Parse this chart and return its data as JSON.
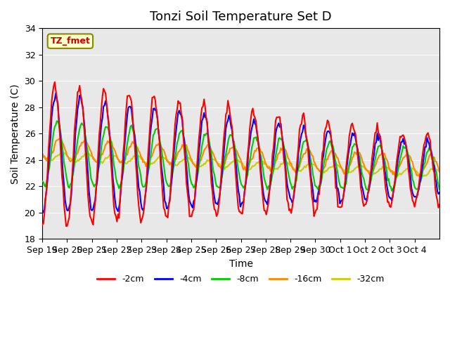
{
  "title": "Tonzi Soil Temperature Set D",
  "ylabel": "Soil Temperature (C)",
  "xlabel": "Time",
  "annotation": "TZ_fmet",
  "ylim": [
    18,
    34
  ],
  "yticks": [
    18,
    20,
    22,
    24,
    26,
    28,
    30,
    32,
    34
  ],
  "xtick_labels": [
    "Sep 19",
    "Sep 20",
    "Sep 21",
    "Sep 22",
    "Sep 23",
    "Sep 24",
    "Sep 25",
    "Sep 26",
    "Sep 27",
    "Sep 28",
    "Sep 29",
    "Sep 30",
    "Oct 1",
    "Oct 2",
    "Oct 3",
    "Oct 4"
  ],
  "legend_labels": [
    "-2cm",
    "-4cm",
    "-8cm",
    "-16cm",
    "-32cm"
  ],
  "line_colors": [
    "#ff0000",
    "#0000ff",
    "#00cc00",
    "#ff8800",
    "#cccc00"
  ],
  "line_widths": [
    1.5,
    1.5,
    1.5,
    1.5,
    1.5
  ],
  "bg_color": "#e8e8e8",
  "fig_color": "#ffffff",
  "title_fontsize": 13,
  "axis_fontsize": 9,
  "legend_fontsize": 9
}
